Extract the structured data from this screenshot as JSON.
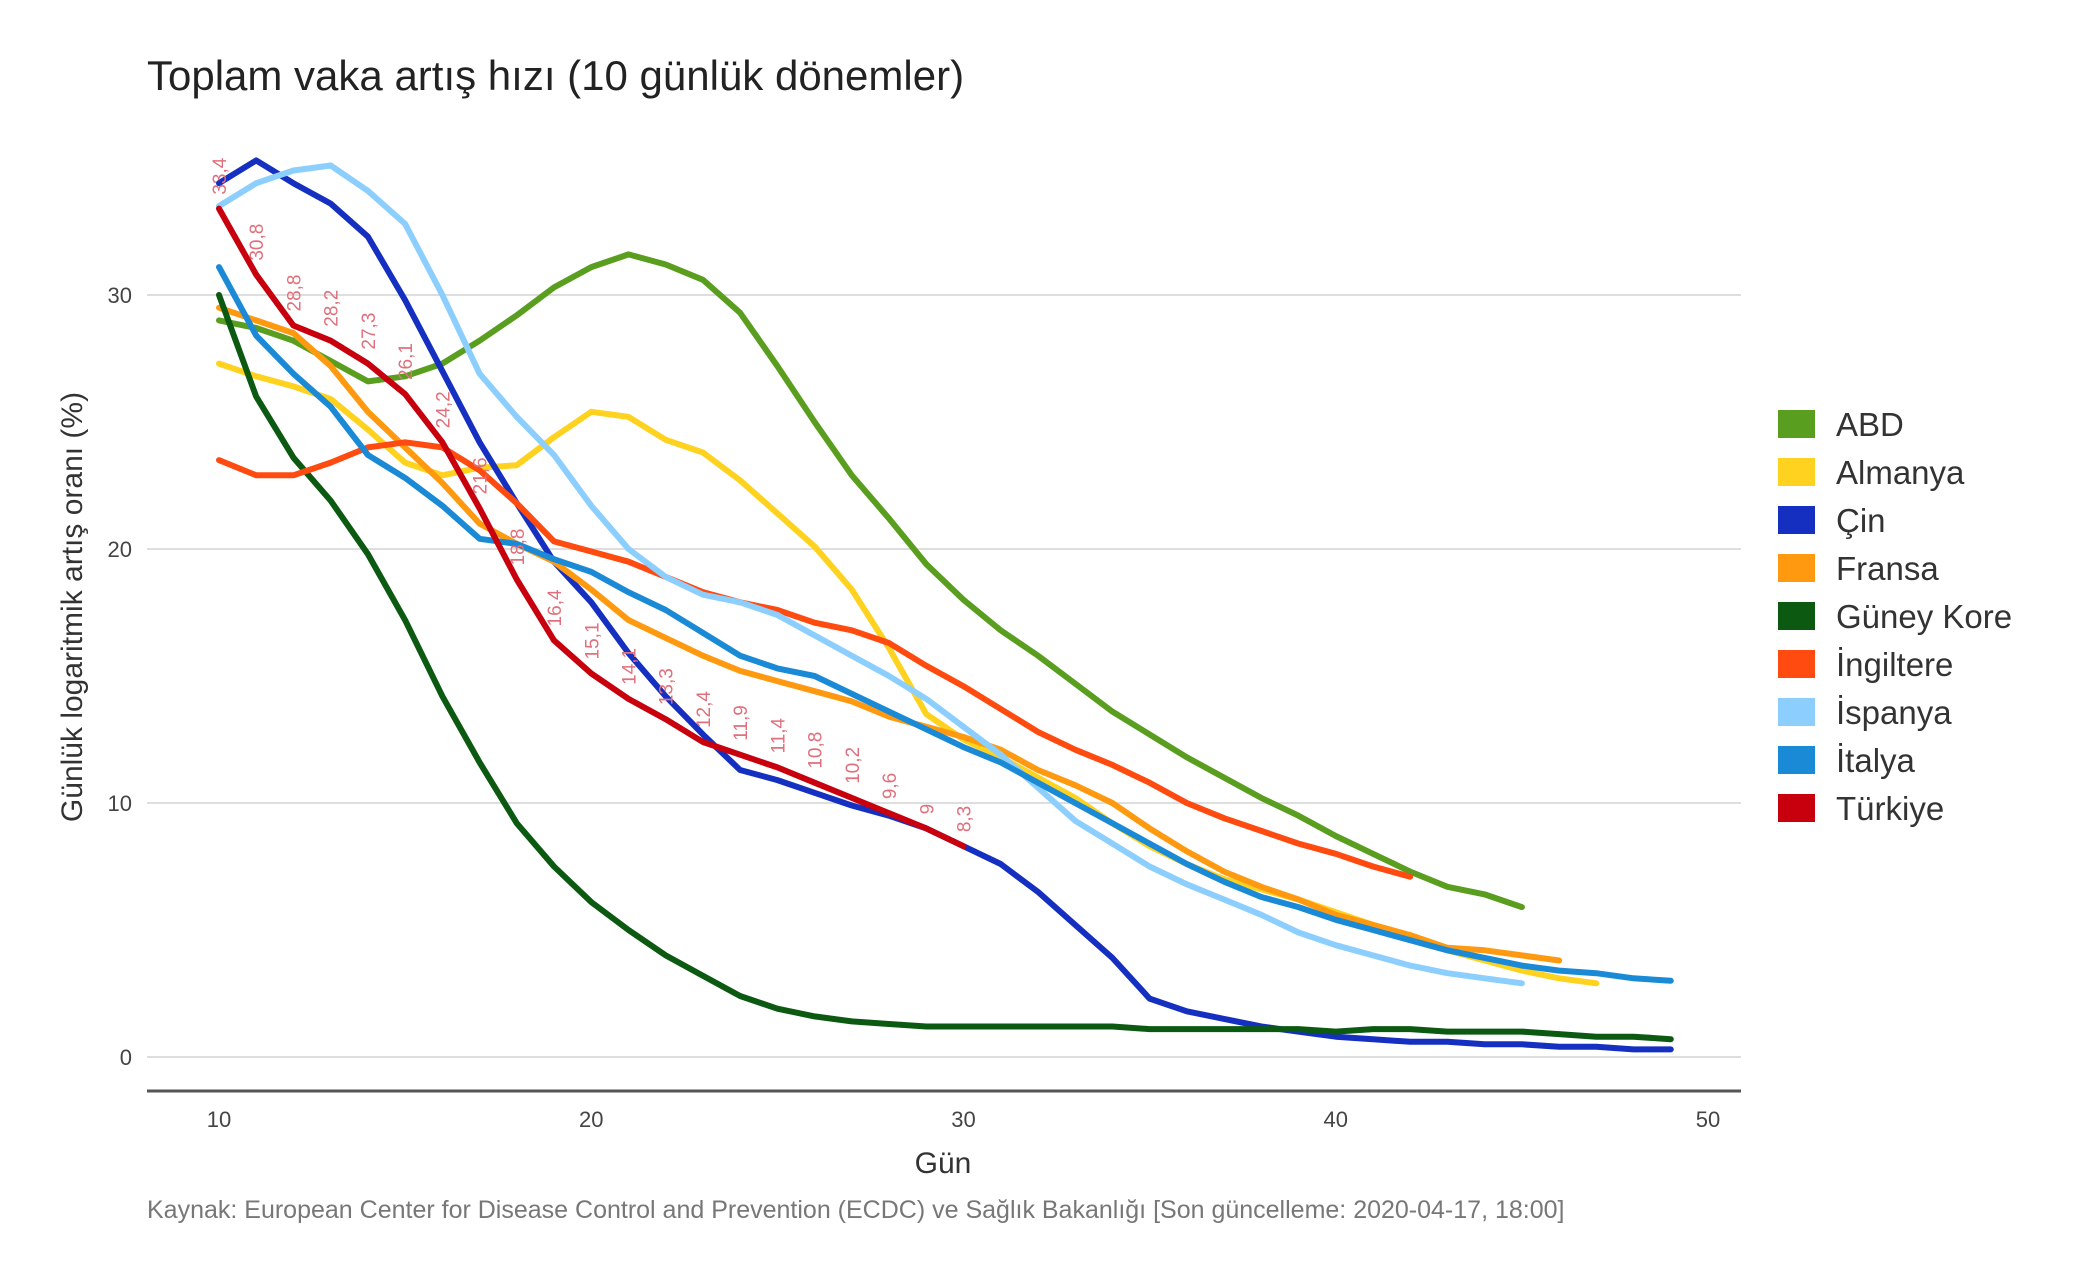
{
  "chart_data": {
    "type": "line",
    "title": "Toplam vaka artış hızı (10 günlük dönemler)",
    "xlabel": "Gün",
    "ylabel": "Günlük logaritmik artış oranı (%)",
    "source": "Kaynak: European Center for Disease Control and Prevention (ECDC) ve Sağlık Bakanlığı [Son güncelleme: 2020-04-17, 18:00]",
    "xlim": [
      8,
      52
    ],
    "ylim": [
      -1.5,
      37
    ],
    "xticks": [
      10,
      20,
      30,
      40,
      50
    ],
    "yticks": [
      0,
      10,
      20,
      30
    ],
    "grid": true,
    "legend_position": "right",
    "x_start": 10,
    "series": [
      {
        "name": "ABD",
        "color": "#5a9e1f",
        "values": [
          29,
          28.7,
          28.2,
          27.4,
          26.6,
          26.8,
          27.3,
          28.2,
          29.2,
          30.3,
          31.1,
          31.6,
          31.2,
          30.6,
          29.3,
          27.2,
          25,
          22.9,
          21.2,
          19.4,
          18,
          16.8,
          15.8,
          14.7,
          13.6,
          12.7,
          11.8,
          11,
          10.2,
          9.5,
          8.7,
          8,
          7.3,
          6.7,
          6.4,
          5.9
        ]
      },
      {
        "name": "Almanya",
        "color": "#ffd21f",
        "values": [
          27.3,
          26.8,
          26.4,
          25.9,
          24.7,
          23.4,
          22.9,
          23.2,
          23.3,
          24.4,
          25.4,
          25.2,
          24.3,
          23.8,
          22.7,
          21.4,
          20.1,
          18.4,
          16.1,
          13.5,
          12.5,
          11.8,
          11,
          10.2,
          9.2,
          8.3,
          7.6,
          7,
          6.6,
          6.2,
          5.7,
          5.2,
          4.7,
          4.2,
          3.8,
          3.4,
          3.1,
          2.9
        ]
      },
      {
        "name": "Çin",
        "color": "#1530c0",
        "values": [
          34.4,
          35.3,
          34.4,
          33.6,
          32.3,
          29.8,
          27,
          24.2,
          21.8,
          19.5,
          17.9,
          15.9,
          14.2,
          12.7,
          11.3,
          10.9,
          10.4,
          9.9,
          9.5,
          9,
          8.3,
          7.6,
          6.5,
          5.2,
          3.9,
          2.3,
          1.8,
          1.5,
          1.2,
          1,
          0.8,
          0.7,
          0.6,
          0.6,
          0.5,
          0.5,
          0.4,
          0.4,
          0.3,
          0.3
        ]
      },
      {
        "name": "Fransa",
        "color": "#ff9a10",
        "values": [
          29.5,
          29,
          28.5,
          27.2,
          25.4,
          24,
          22.6,
          21,
          20.2,
          19.5,
          18.4,
          17.2,
          16.5,
          15.8,
          15.2,
          14.8,
          14.4,
          14,
          13.4,
          13,
          12.6,
          12.1,
          11.3,
          10.7,
          10,
          9,
          8.1,
          7.3,
          6.7,
          6.2,
          5.6,
          5.2,
          4.8,
          4.3,
          4.2,
          4,
          3.8
        ]
      },
      {
        "name": "Güney Kore",
        "color": "#0c5a12",
        "values": [
          30,
          26,
          23.6,
          21.9,
          19.8,
          17.2,
          14.2,
          11.6,
          9.2,
          7.5,
          6.1,
          5,
          4,
          3.2,
          2.4,
          1.9,
          1.6,
          1.4,
          1.3,
          1.2,
          1.2,
          1.2,
          1.2,
          1.2,
          1.2,
          1.1,
          1.1,
          1.1,
          1.1,
          1.1,
          1.0,
          1.1,
          1.1,
          1.0,
          1.0,
          1.0,
          0.9,
          0.8,
          0.8,
          0.7
        ]
      },
      {
        "name": "İngiltere",
        "color": "#ff4a10",
        "values": [
          23.5,
          22.9,
          22.9,
          23.4,
          24,
          24.2,
          24,
          23.1,
          21.8,
          20.3,
          19.9,
          19.5,
          18.9,
          18.3,
          17.9,
          17.6,
          17.1,
          16.8,
          16.3,
          15.4,
          14.6,
          13.7,
          12.8,
          12.1,
          11.5,
          10.8,
          10,
          9.4,
          8.9,
          8.4,
          8,
          7.5,
          7.1
        ]
      },
      {
        "name": "İspanya",
        "color": "#8ccfff",
        "values": [
          33.5,
          34.4,
          34.9,
          35.1,
          34.1,
          32.8,
          30,
          26.9,
          25.2,
          23.7,
          21.7,
          20,
          18.9,
          18.2,
          17.9,
          17.4,
          16.6,
          15.8,
          15,
          14.1,
          13,
          11.9,
          10.6,
          9.3,
          8.4,
          7.5,
          6.8,
          6.2,
          5.6,
          4.9,
          4.4,
          4,
          3.6,
          3.3,
          3.1,
          2.9
        ]
      },
      {
        "name": "İtalya",
        "color": "#1a8ad6",
        "values": [
          31.1,
          28.4,
          26.9,
          25.6,
          23.7,
          22.8,
          21.7,
          20.4,
          20.2,
          19.6,
          19.1,
          18.3,
          17.6,
          16.7,
          15.8,
          15.3,
          15,
          14.3,
          13.6,
          12.9,
          12.2,
          11.6,
          10.8,
          10,
          9.2,
          8.4,
          7.6,
          6.9,
          6.3,
          5.9,
          5.4,
          5,
          4.6,
          4.2,
          3.9,
          3.6,
          3.4,
          3.3,
          3.1,
          3
        ]
      },
      {
        "name": "Türkiye",
        "color": "#c8000e",
        "values": [
          33.4,
          30.8,
          28.8,
          28.2,
          27.3,
          26.1,
          24.2,
          21.6,
          18.8,
          16.4,
          15.1,
          14.1,
          13.3,
          12.4,
          11.9,
          11.4,
          10.8,
          10.2,
          9.6,
          9,
          8.3
        ],
        "data_labels": [
          "33,4",
          "30,8",
          "28,8",
          "28,2",
          "27,3",
          "26,1",
          "24,2",
          "21,6",
          "18,8",
          "16,4",
          "15,1",
          "14,1",
          "13,3",
          "12,4",
          "11,9",
          "11,4",
          "10,8",
          "10,2",
          "9,6",
          "9",
          "8,3"
        ]
      }
    ]
  }
}
